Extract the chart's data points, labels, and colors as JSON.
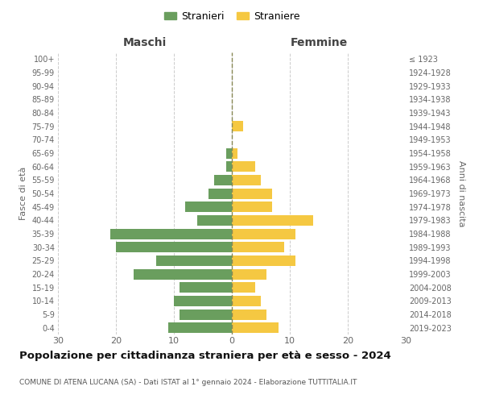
{
  "age_groups": [
    "0-4",
    "5-9",
    "10-14",
    "15-19",
    "20-24",
    "25-29",
    "30-34",
    "35-39",
    "40-44",
    "45-49",
    "50-54",
    "55-59",
    "60-64",
    "65-69",
    "70-74",
    "75-79",
    "80-84",
    "85-89",
    "90-94",
    "95-99",
    "100+"
  ],
  "birth_years": [
    "2019-2023",
    "2014-2018",
    "2009-2013",
    "2004-2008",
    "1999-2003",
    "1994-1998",
    "1989-1993",
    "1984-1988",
    "1979-1983",
    "1974-1978",
    "1969-1973",
    "1964-1968",
    "1959-1963",
    "1954-1958",
    "1949-1953",
    "1944-1948",
    "1939-1943",
    "1934-1938",
    "1929-1933",
    "1924-1928",
    "≤ 1923"
  ],
  "maschi": [
    11,
    9,
    10,
    9,
    17,
    13,
    20,
    21,
    6,
    8,
    4,
    3,
    1,
    1,
    0,
    0,
    0,
    0,
    0,
    0,
    0
  ],
  "femmine": [
    8,
    6,
    5,
    4,
    6,
    11,
    9,
    11,
    14,
    7,
    7,
    5,
    4,
    1,
    0,
    2,
    0,
    0,
    0,
    0,
    0
  ],
  "color_maschi": "#6a9e5e",
  "color_femmine": "#f5c842",
  "bg_color": "#ffffff",
  "grid_color": "#cccccc",
  "title": "Popolazione per cittadinanza straniera per età e sesso - 2024",
  "subtitle": "COMUNE DI ATENA LUCANA (SA) - Dati ISTAT al 1° gennaio 2024 - Elaborazione TUTTITALIA.IT",
  "xlabel_left": "Maschi",
  "xlabel_right": "Femmine",
  "ylabel_left": "Fasce di età",
  "ylabel_right": "Anni di nascita",
  "legend_maschi": "Stranieri",
  "legend_femmine": "Straniere",
  "xlim": 30,
  "fig_width": 6.0,
  "fig_height": 5.0
}
